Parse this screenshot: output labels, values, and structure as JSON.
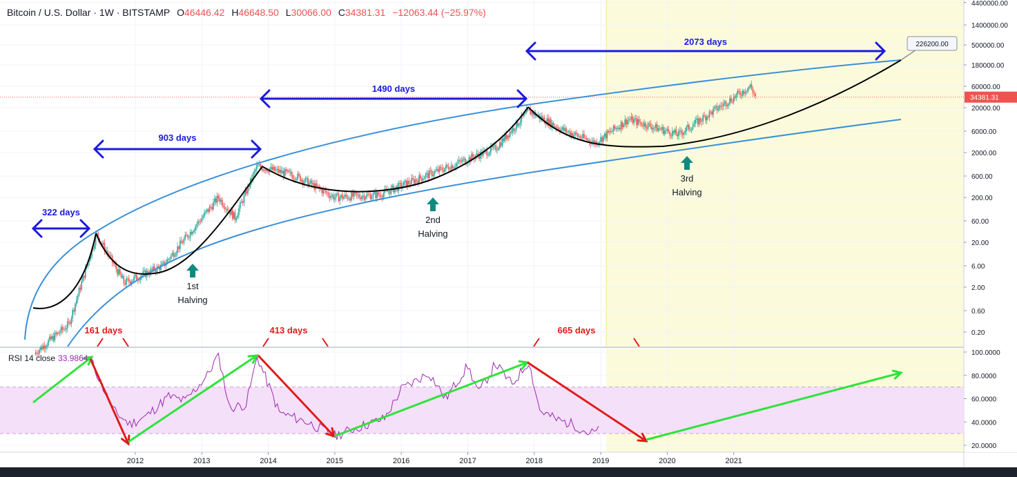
{
  "header": {
    "symbol": "Bitcoin / U.S. Dollar · 1W · BITSTAMP",
    "o_label": "O",
    "o_value": "46446.42",
    "h_label": "H",
    "h_value": "46648.50",
    "l_label": "L",
    "l_value": "30066.00",
    "c_label": "C",
    "c_value": "34381.31",
    "change": "−12063.44 (−25.97%)"
  },
  "rsi_header": {
    "label": "RSI 14 close",
    "value": "33.9864"
  },
  "colors": {
    "up": "#26a69a",
    "down": "#ef5350",
    "rsi": "#9c27b0",
    "blue_arrow": "#1a1adb",
    "red_text": "#e01b1b",
    "green_arrow": "#2ee33a",
    "band": "#3a8fd8",
    "highlight": "#fbfbdc",
    "rsi_band": "#f4e0f8",
    "halving_arrow": "#118a7e"
  },
  "chart_data": [
    {
      "type": "candlestick",
      "scale": "log",
      "yaxis_ticks": [
        "4400000.00",
        "1400000.00",
        "500000.00",
        "180000.00",
        "60000.00",
        "20000.00",
        "6000.00",
        "2000.00",
        "600.00",
        "200.00",
        "60.00",
        "20.00",
        "6.00",
        "2.00",
        "0.60",
        "0.20"
      ],
      "xaxis_ticks": [
        "2012",
        "2013",
        "2014",
        "2015",
        "2016",
        "2017",
        "2018",
        "2019",
        "2020",
        "2021"
      ],
      "last_price": "34381.31",
      "target_label": "226200.00",
      "cycle_lengths": [
        {
          "text": "322 days"
        },
        {
          "text": "903 days"
        },
        {
          "text": "1490 days"
        },
        {
          "text": "2073 days"
        }
      ],
      "decline_lengths": [
        {
          "text": "161 days"
        },
        {
          "text": "413 days"
        },
        {
          "text": "665 days"
        }
      ],
      "halvings": [
        {
          "line1": "1st",
          "line2": "Halving"
        },
        {
          "line1": "2nd",
          "line2": "Halving"
        },
        {
          "line1": "3rd",
          "line2": "Halving"
        }
      ],
      "price_path": [
        [
          "2010-07",
          0.07
        ],
        [
          "2011-01",
          0.3
        ],
        [
          "2011-06",
          30
        ],
        [
          "2011-11",
          2.5
        ],
        [
          "2012-06",
          6
        ],
        [
          "2013-04",
          200
        ],
        [
          "2013-07",
          70
        ],
        [
          "2013-11",
          1000
        ],
        [
          "2014-06",
          600
        ],
        [
          "2015-01",
          200
        ],
        [
          "2015-09",
          230
        ],
        [
          "2016-06",
          650
        ],
        [
          "2017-06",
          2500
        ],
        [
          "2017-12",
          17000
        ],
        [
          "2018-06",
          6500
        ],
        [
          "2018-12",
          3300
        ],
        [
          "2019-06",
          11000
        ],
        [
          "2020-03",
          5000
        ],
        [
          "2020-12",
          28000
        ],
        [
          "2021-04",
          60000
        ],
        [
          "2021-05",
          34381
        ]
      ]
    },
    {
      "type": "line",
      "name": "RSI 14 close",
      "yaxis_ticks": [
        "100.0000",
        "80.0000",
        "60.0000",
        "40.0000",
        "20.0000"
      ],
      "band": [
        30,
        70
      ],
      "ylim": [
        15,
        100
      ],
      "values": [
        [
          "2011-05",
          93
        ],
        [
          "2011-09",
          50
        ],
        [
          "2011-12",
          38
        ],
        [
          "2012-03",
          45
        ],
        [
          "2012-07",
          62
        ],
        [
          "2012-10",
          58
        ],
        [
          "2013-02",
          80
        ],
        [
          "2013-04",
          98
        ],
        [
          "2013-06",
          52
        ],
        [
          "2013-09",
          55
        ],
        [
          "2013-11",
          96
        ],
        [
          "2014-03",
          48
        ],
        [
          "2014-08",
          40
        ],
        [
          "2015-01",
          28
        ],
        [
          "2015-05",
          35
        ],
        [
          "2015-10",
          43
        ],
        [
          "2016-01",
          68
        ],
        [
          "2016-06",
          82
        ],
        [
          "2016-09",
          60
        ],
        [
          "2017-01",
          88
        ],
        [
          "2017-03",
          65
        ],
        [
          "2017-06",
          90
        ],
        [
          "2017-09",
          72
        ],
        [
          "2017-12",
          92
        ],
        [
          "2018-02",
          50
        ],
        [
          "2018-05",
          42
        ],
        [
          "2018-08",
          38
        ],
        [
          "2018-11",
          30
        ],
        [
          "2019-01",
          33
        ]
      ]
    }
  ]
}
